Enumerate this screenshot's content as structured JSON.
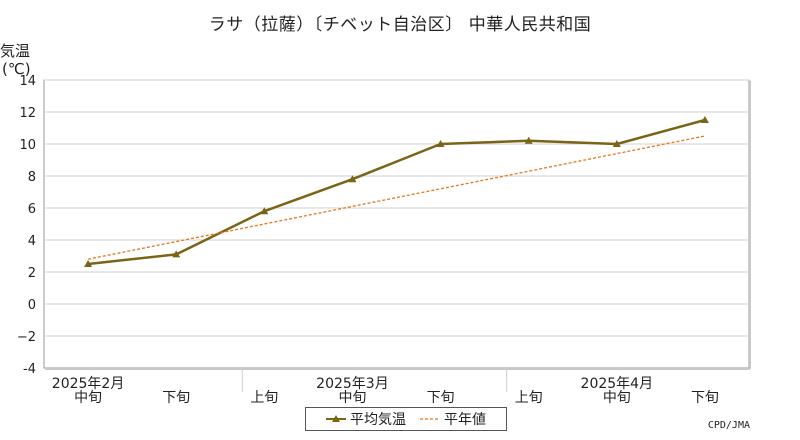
{
  "chart_data": {
    "type": "line",
    "title": "ラサ（拉薩）〔チベット自治区〕 中華人民共和国",
    "ylabel": "気温",
    "yunit": "(℃)",
    "ylim": [
      -4,
      14
    ],
    "yticks": [
      "-4",
      "−2",
      "0",
      "2",
      "4",
      "6",
      "8",
      "10",
      "12",
      "14"
    ],
    "categories": [
      "中旬",
      "下旬",
      "上旬",
      "中旬",
      "下旬",
      "上旬",
      "中旬",
      "下旬"
    ],
    "month_labels": [
      {
        "label": "2025年2月",
        "index": 0
      },
      {
        "label": "2025年3月",
        "index": 3
      },
      {
        "label": "2025年4月",
        "index": 6
      }
    ],
    "series": [
      {
        "name": "平均気温",
        "style": "solid-marker",
        "color": "#7a6416",
        "values": [
          2.5,
          3.1,
          5.8,
          7.8,
          10.0,
          10.2,
          10.0,
          11.5
        ]
      },
      {
        "name": "平年値",
        "style": "dashed",
        "color": "#e8751a",
        "values": [
          2.8,
          3.9,
          5.0,
          6.1,
          7.2,
          8.3,
          9.4,
          10.5
        ]
      }
    ],
    "grid": true,
    "legend": "bottom-center"
  },
  "credit": "CPD/JMA"
}
